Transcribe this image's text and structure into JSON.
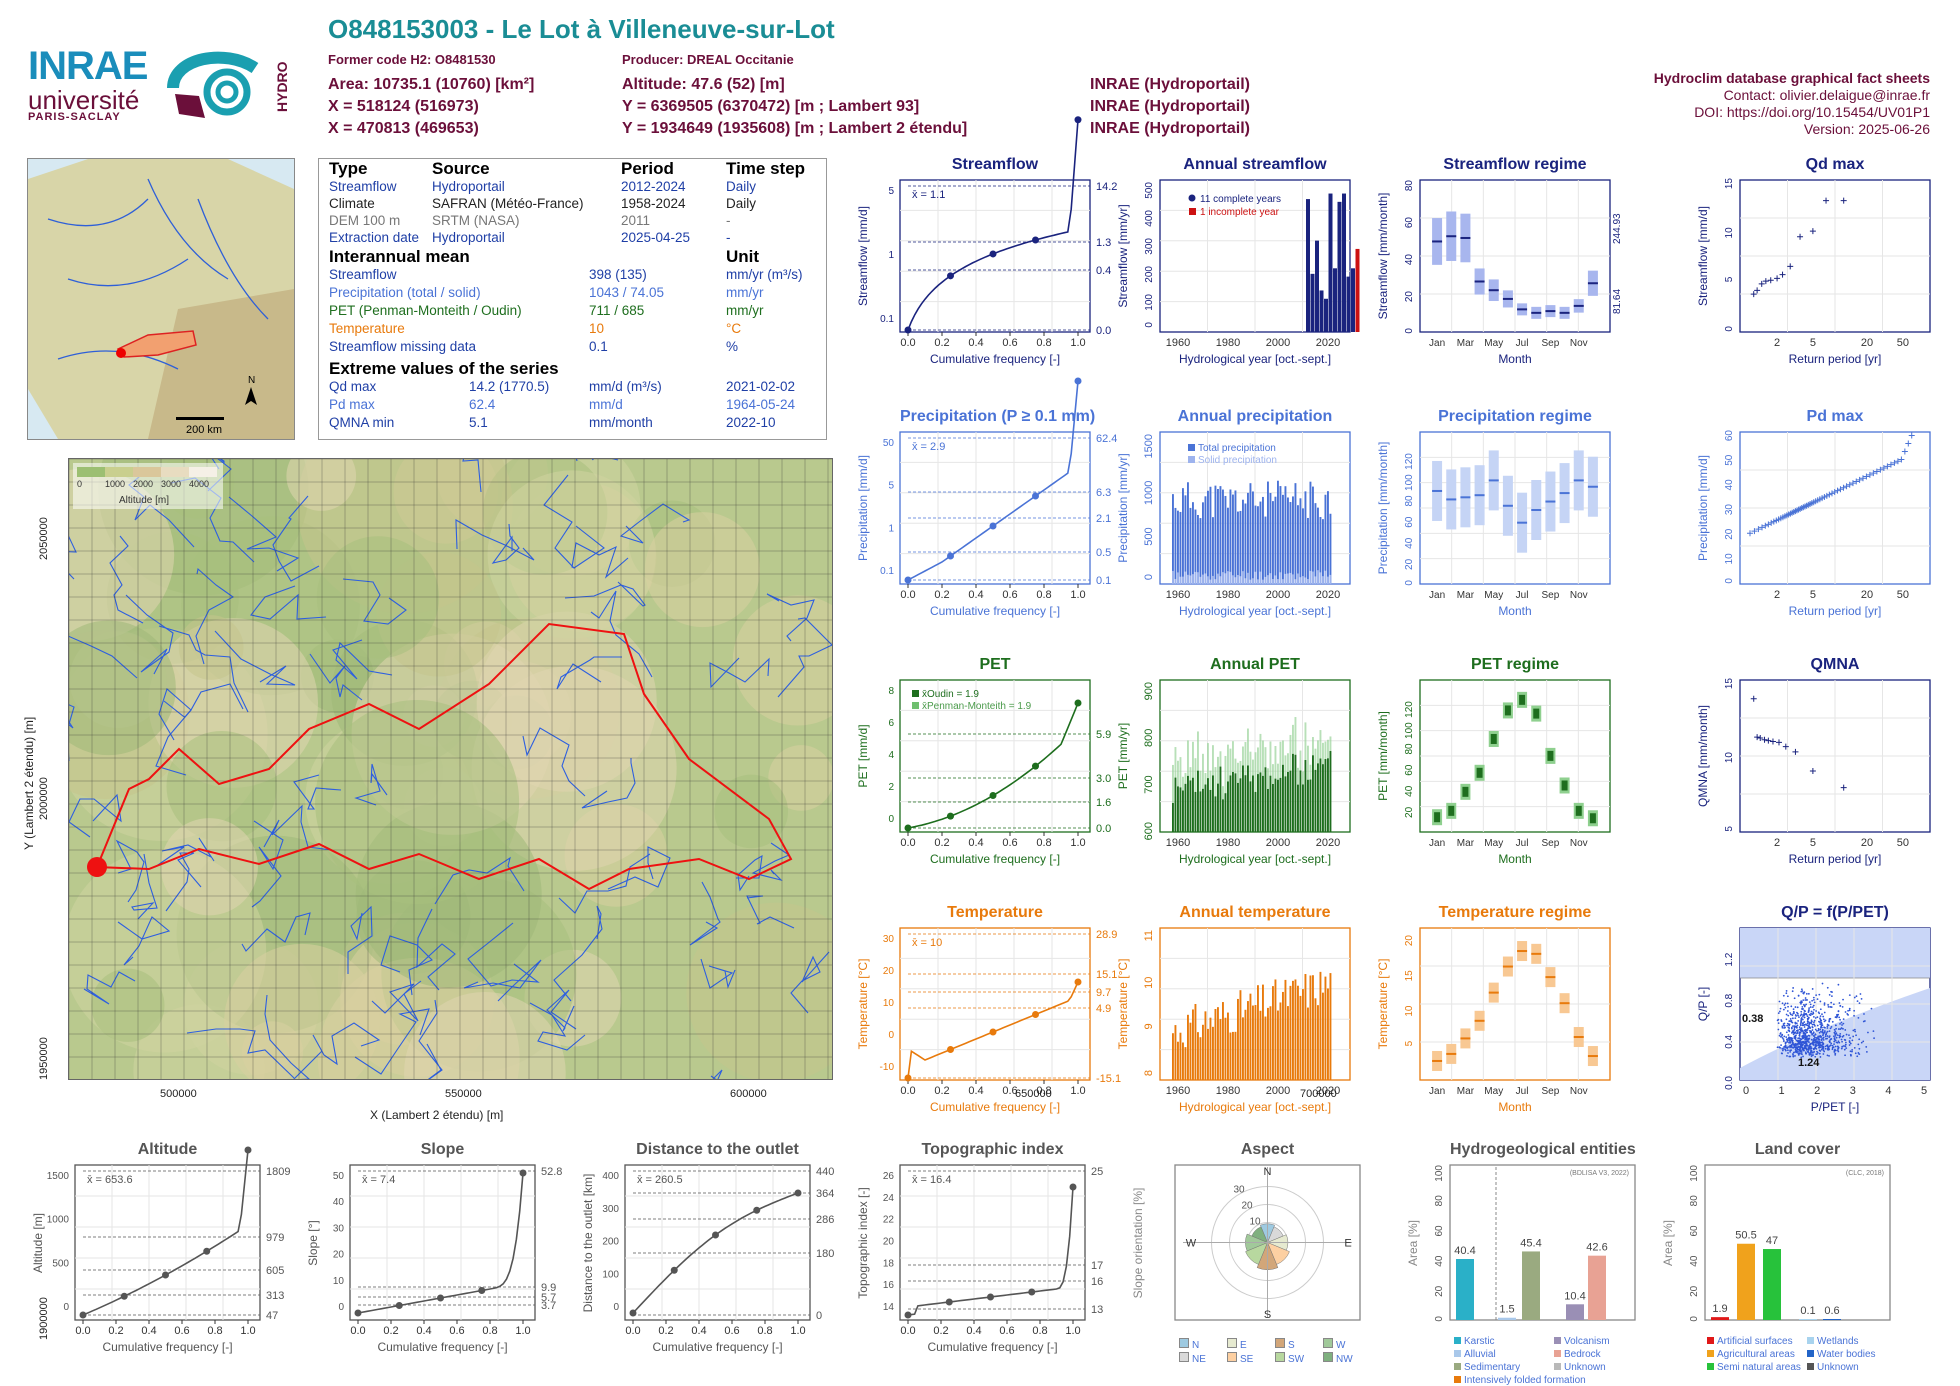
{
  "header": {
    "title": "O848153003 - Le Lot à Villeneuve-sur-Lot",
    "former_code": "Former code H2: O8481530",
    "producer": "Producer: DREAL Occitanie",
    "area": "Area: 10735.1 (10760) [km²]",
    "altitude": "Altitude: 47.6 (52) [m]",
    "x_l93": "X = 518124 (516973)",
    "y_l93": "Y = 6369505 (6370472) [m ; Lambert 93]",
    "x_l2": "X = 470813 (469653)",
    "y_l2": "Y = 1934649 (1935608) [m ; Lambert 2 étendu]",
    "src1": "INRAE (Hydroportail)",
    "src2": "INRAE (Hydroportail)",
    "src3": "INRAE (Hydroportail)"
  },
  "credits": {
    "line1": "Hydroclim database graphical fact sheets",
    "line2": "Contact: olivier.delaigue@inrae.fr",
    "line3": "DOI: https://doi.org/10.15454/UV01P1",
    "line4": "Version: 2025-06-26"
  },
  "logos": {
    "inrae": "INRAE",
    "univ": "université",
    "ps": "PARIS-SACLAY",
    "hydro": "HYDRO"
  },
  "france_map": {
    "scale": "200 km",
    "north": "N"
  },
  "info": {
    "h_type": "Type",
    "h_source": "Source",
    "h_period": "Period",
    "h_step": "Time step",
    "rows": [
      {
        "a": "Streamflow",
        "b": "Hydroportail",
        "c": "2012-2024",
        "d": "Daily",
        "color": "#1f3fa6"
      },
      {
        "a": "Climate",
        "b": "SAFRAN (Météo-France)",
        "c": "1958-2024",
        "d": "Daily",
        "color": "#222222"
      },
      {
        "a": "DEM 100 m",
        "b": "SRTM (NASA)",
        "c": "2011",
        "d": "-",
        "color": "#777777"
      },
      {
        "a": "Extraction date",
        "b": "Hydroportail",
        "c": "2025-04-25",
        "d": "-",
        "color": "#1f3fa6"
      }
    ],
    "h_mean": "Interannual mean",
    "h_unit": "Unit",
    "means": [
      {
        "a": "Streamflow",
        "v": "398 (135)",
        "u": "mm/yr (m³/s)",
        "color": "#1f3fa6"
      },
      {
        "a": "Precipitation (total / solid)",
        "v": "1043 / 74.05",
        "u": "mm/yr",
        "color": "#4a73d6"
      },
      {
        "a": "PET (Penman-Monteith / Oudin)",
        "v": "711 / 685",
        "u": "mm/yr",
        "color": "#1e6e1e"
      },
      {
        "a": "Temperature",
        "v": "10",
        "u": "°C",
        "color": "#e87a0c"
      },
      {
        "a": "Streamflow missing data",
        "v": "0.1",
        "u": "%",
        "color": "#1f3fa6"
      }
    ],
    "h_extreme": "Extreme values of the series",
    "extremes": [
      {
        "a": "Qd max",
        "v": "14.2 (1770.5)",
        "u": "mm/d (m³/s)",
        "d": "2021-02-02",
        "color": "#1f3fa6"
      },
      {
        "a": "Pd max",
        "v": "62.4",
        "u": "mm/d",
        "d": "1964-05-24",
        "color": "#4a73d6"
      },
      {
        "a": "QMNA min",
        "v": "5.1",
        "u": "mm/month",
        "d": "2022-10",
        "color": "#1f3fa6"
      }
    ]
  },
  "bigmap": {
    "xlabel": "X (Lambert 2 étendu) [m]",
    "ylabel": "Y (Lambert 2 étendu) [m]",
    "xticks": [
      "500000",
      "550000",
      "600000",
      "650000",
      "700000"
    ],
    "yticks": [
      "2050000",
      "2000000",
      "1950000",
      "1900000"
    ],
    "legend_title": "Altitude [m]",
    "legend_ticks": [
      "0",
      "1000",
      "2000",
      "3000",
      "4000"
    ]
  },
  "colors": {
    "q": "#1a237e",
    "p": "#4a73d6",
    "pet": "#1e6e1e",
    "t": "#e87a0c",
    "gray": "#555555"
  },
  "chart_data": [
    {
      "id": "streamflow",
      "type": "line",
      "title": "Streamflow",
      "xlabel": "Cumulative frequency [-]",
      "ylabel": "Streamflow [mm/d]",
      "mean_label": "x̄ = 1.1",
      "right_ticks": [
        "14.2",
        "1.3",
        "0.4",
        "0.0"
      ],
      "left_ticks": [
        "5",
        "1",
        "0.1"
      ]
    },
    {
      "id": "annual_streamflow",
      "type": "bar",
      "title": "Annual streamflow",
      "xlabel": "Hydrological year [oct.-sept.]",
      "ylabel": "Streamflow [mm/yr]",
      "legend": [
        "11 complete years",
        "1 incomplete year"
      ],
      "x": [
        2013,
        2014,
        2015,
        2016,
        2017,
        2018,
        2019,
        2020,
        2021,
        2022,
        2023,
        2024
      ],
      "values": [
        480,
        210,
        330,
        150,
        120,
        500,
        230,
        470,
        500,
        200,
        230,
        300
      ],
      "ylim": [
        0,
        520
      ],
      "xticks": [
        "1960",
        "1980",
        "2000",
        "2020"
      ],
      "yticks": [
        "0",
        "100",
        "200",
        "300",
        "400",
        "500"
      ]
    },
    {
      "id": "streamflow_regime",
      "type": "bar",
      "title": "Streamflow regime",
      "xlabel": "Month",
      "ylabel": "Streamflow [mm/month]",
      "categories": [
        "Jan",
        "Feb",
        "Mar",
        "Apr",
        "May",
        "Jun",
        "Jul",
        "Aug",
        "Sep",
        "Oct",
        "Nov",
        "Dec"
      ],
      "values": [
        52,
        55,
        54,
        29,
        24,
        19,
        13,
        11,
        12,
        11,
        15,
        28
      ],
      "ylim": [
        0,
        85
      ],
      "right_ticks": [
        "244.93",
        "81.64",
        "0"
      ],
      "yticks": [
        "0",
        "20",
        "40",
        "60",
        "80"
      ]
    },
    {
      "id": "qd_max",
      "type": "scatter",
      "title": "Qd max",
      "xlabel": "Return period [yr]",
      "ylabel": "Streamflow [mm/d]",
      "x": [
        1.1,
        1.2,
        1.35,
        1.5,
        1.7,
        2,
        2.3,
        2.8,
        3.6,
        5,
        7,
        11
      ],
      "values": [
        4.1,
        4.5,
        5.2,
        5.5,
        5.6,
        5.8,
        6.2,
        7.1,
        10.3,
        10.9,
        14.2,
        14.2
      ],
      "ylim": [
        0,
        16
      ],
      "xticks": [
        "2",
        "5",
        "20",
        "50"
      ],
      "yticks": [
        "0",
        "5",
        "10",
        "15"
      ]
    },
    {
      "id": "precipitation",
      "type": "line",
      "title": "Precipitation (P ≥ 0.1 mm)",
      "xlabel": "Cumulative frequency [-]",
      "ylabel": "Precipitation [mm/d]",
      "mean_label": "x̄ = 2.9",
      "right_ticks": [
        "62.4",
        "6.3",
        "2.1",
        "0.5",
        "0.1"
      ],
      "left_ticks": [
        "50",
        "5",
        "1",
        "0.1"
      ]
    },
    {
      "id": "annual_precipitation",
      "type": "bar",
      "title": "Annual precipitation",
      "xlabel": "Hydrological year [oct.-sept.]",
      "ylabel": "Precipitation [mm/yr]",
      "legend": [
        "Total precipitation",
        "Solid precipitation"
      ],
      "ylim": [
        0,
        1500
      ],
      "xticks": [
        "1960",
        "1980",
        "2000",
        "2020"
      ],
      "yticks": [
        "0",
        "500",
        "1000",
        "1500"
      ]
    },
    {
      "id": "precipitation_regime",
      "type": "bar",
      "title": "Precipitation regime",
      "xlabel": "Month",
      "ylabel": "Precipitation [mm/month]",
      "categories": [
        "Jan",
        "Feb",
        "Mar",
        "Apr",
        "May",
        "Jun",
        "Jul",
        "Aug",
        "Sep",
        "Oct",
        "Nov",
        "Dec"
      ],
      "values": [
        88,
        80,
        82,
        84,
        98,
        74,
        58,
        70,
        78,
        86,
        98,
        92
      ],
      "ylim": [
        0,
        140
      ],
      "yticks": [
        "0",
        "20",
        "40",
        "60",
        "80",
        "100",
        "120"
      ]
    },
    {
      "id": "pd_max",
      "type": "scatter",
      "title": "Pd max",
      "xlabel": "Return period [yr]",
      "ylabel": "Precipitation [mm/d]",
      "ylim": [
        0,
        70
      ],
      "xticks": [
        "2",
        "5",
        "20",
        "50"
      ],
      "yticks": [
        "0",
        "10",
        "20",
        "30",
        "40",
        "50",
        "60"
      ]
    },
    {
      "id": "pet",
      "type": "line",
      "title": "PET",
      "xlabel": "Cumulative frequency [-]",
      "ylabel": "PET [mm/d]",
      "legend": [
        "x̄Oudin = 1.9",
        "x̄Penman-Monteith = 1.9"
      ],
      "right_ticks": [
        "5.9",
        "3.0",
        "1.6",
        "0.0"
      ],
      "left_ticks": [
        "8",
        "6",
        "4",
        "2",
        "0"
      ]
    },
    {
      "id": "annual_pet",
      "type": "bar",
      "title": "Annual PET",
      "xlabel": "Hydrological year [oct.-sept.]",
      "ylabel": "PET [mm/yr]",
      "ylim": [
        550,
        950
      ],
      "xticks": [
        "1960",
        "1980",
        "2000",
        "2020"
      ],
      "yticks": [
        "600",
        "700",
        "800",
        "900"
      ]
    },
    {
      "id": "pet_regime",
      "type": "bar",
      "title": "PET regime",
      "xlabel": "Month",
      "ylabel": "PET [mm/month]",
      "categories": [
        "Jan",
        "Feb",
        "Mar",
        "Apr",
        "May",
        "Jun",
        "Jul",
        "Aug",
        "Sep",
        "Oct",
        "Nov",
        "Dec"
      ],
      "values": [
        14,
        20,
        38,
        56,
        88,
        115,
        125,
        112,
        72,
        44,
        20,
        13
      ],
      "ylim": [
        0,
        140
      ],
      "yticks": [
        "20",
        "40",
        "60",
        "80",
        "100",
        "120"
      ]
    },
    {
      "id": "qmna",
      "type": "scatter",
      "title": "QMNA",
      "xlabel": "Return period [yr]",
      "ylabel": "QMNA [mm/month]",
      "x": [
        1.1,
        1.2,
        1.3,
        1.45,
        1.6,
        1.8,
        2.1,
        2.5,
        3.2,
        5,
        11
      ],
      "values": [
        15.3,
        10.9,
        10.8,
        10.6,
        10.5,
        10.4,
        10.3,
        9.8,
        9.2,
        7.0,
        5.1
      ],
      "ylim": [
        0,
        17
      ],
      "xticks": [
        "2",
        "5",
        "20",
        "50"
      ],
      "yticks": [
        "5",
        "10",
        "15"
      ]
    },
    {
      "id": "temperature",
      "type": "line",
      "title": "Temperature",
      "xlabel": "Cumulative frequency [-]",
      "ylabel": "Temperature [°C]",
      "mean_label": "x̄ = 10",
      "right_ticks": [
        "28.9",
        "15.1",
        "9.7",
        "4.9",
        "-15.1"
      ],
      "left_ticks": [
        "30",
        "20",
        "10",
        "0",
        "-10"
      ]
    },
    {
      "id": "annual_temperature",
      "type": "bar",
      "title": "Annual temperature",
      "xlabel": "Hydrological year [oct.-sept.]",
      "ylabel": "Temperature [°C]",
      "ylim": [
        8,
        12
      ],
      "xticks": [
        "1960",
        "1980",
        "2000",
        "2020"
      ],
      "yticks": [
        "8",
        "9",
        "10",
        "11"
      ]
    },
    {
      "id": "temperature_regime",
      "type": "bar",
      "title": "Temperature regime",
      "xlabel": "Month",
      "ylabel": "Temperature [°C]",
      "categories": [
        "Jan",
        "Feb",
        "Mar",
        "Apr",
        "May",
        "Jun",
        "Jul",
        "Aug",
        "Sep",
        "Oct",
        "Nov",
        "Dec"
      ],
      "values": [
        2.7,
        3.7,
        5.9,
        8.4,
        12.4,
        16.1,
        18.3,
        17.9,
        14.6,
        10.9,
        6.1,
        3.4
      ],
      "ylim": [
        0,
        21
      ],
      "yticks": [
        "5",
        "10",
        "15",
        "20"
      ]
    },
    {
      "id": "qp_ppet",
      "type": "scatter",
      "title": "Q/P = f(P/PET)",
      "xlabel": "P/PET [-]",
      "ylabel": "Q/P [-]",
      "annotations": [
        "0.38",
        "1.24"
      ],
      "xticks": [
        "0",
        "1",
        "2",
        "3",
        "4",
        "5"
      ],
      "yticks": [
        "0.0",
        "0.4",
        "0.8",
        "1.2"
      ]
    },
    {
      "id": "altitude",
      "type": "line",
      "title": "Altitude",
      "xlabel": "Cumulative frequency [-]",
      "ylabel": "Altitude [m]",
      "mean_label": "x̄ = 653.6",
      "right_ticks": [
        "1809",
        "979",
        "605",
        "313",
        "47"
      ],
      "left_ticks": [
        "1500",
        "1000",
        "500",
        "0"
      ]
    },
    {
      "id": "slope",
      "type": "line",
      "title": "Slope",
      "xlabel": "Cumulative frequency [-]",
      "ylabel": "Slope [°]",
      "mean_label": "x̄ = 7.4",
      "right_ticks": [
        "52.8",
        "9.9",
        "5.7",
        "3.7"
      ],
      "left_ticks": [
        "50",
        "40",
        "30",
        "20",
        "10",
        "0"
      ]
    },
    {
      "id": "distance",
      "type": "line",
      "title": "Distance to the outlet",
      "xlabel": "Cumulative frequency [-]",
      "ylabel": "Distance to the outlet [km]",
      "mean_label": "x̄ = 260.5",
      "right_ticks": [
        "440",
        "364",
        "286",
        "180",
        "0"
      ],
      "left_ticks": [
        "400",
        "300",
        "200",
        "100",
        "0"
      ]
    },
    {
      "id": "topo_index",
      "type": "line",
      "title": "Topographic index",
      "xlabel": "Cumulative frequency [-]",
      "ylabel": "Topographic index [-]",
      "mean_label": "x̄ = 16.4",
      "right_ticks": [
        "25",
        "17",
        "16",
        "13"
      ],
      "left_ticks": [
        "26",
        "24",
        "22",
        "20",
        "18",
        "16",
        "14"
      ]
    },
    {
      "id": "aspect",
      "type": "pie",
      "title": "Aspect",
      "ylabel": "Slope orientation [%]",
      "categories": [
        "N",
        "NE",
        "E",
        "SE",
        "S",
        "SW",
        "W",
        "NW"
      ],
      "values": [
        11,
        10,
        12,
        14,
        16,
        14,
        13,
        10
      ],
      "colors": [
        "#9ecae1",
        "#d9d9d9",
        "#e6ead0",
        "#fdd0a2",
        "#d2a679",
        "#b8d89f",
        "#a1c99a",
        "#7fb07f"
      ],
      "ring_ticks": [
        "10",
        "20",
        "30"
      ],
      "compass": [
        "N",
        "E",
        "S",
        "W"
      ]
    },
    {
      "id": "hydrogeology",
      "type": "bar",
      "title": "Hydrogeological entities",
      "ylabel": "Area [%]",
      "categories": [
        "Karstic",
        "Alluvial",
        "Sedimentary",
        "Intensively folded formation",
        "Volcanism",
        "Bedrock",
        "Unknown"
      ],
      "values": [
        40.4,
        1.5,
        45.4,
        0,
        10.4,
        42.6,
        0
      ],
      "colors": [
        "#2ab0c8",
        "#a9c8ea",
        "#9aaa80",
        "#e87a0c",
        "#9a8fb5",
        "#e8a294",
        "#b9b9b9"
      ],
      "source_note": "(BDLISA V3, 2022)",
      "ylim": [
        0,
        100
      ],
      "yticks": [
        "0",
        "20",
        "40",
        "60",
        "80",
        "100"
      ]
    },
    {
      "id": "land_cover",
      "type": "bar",
      "title": "Land cover",
      "ylabel": "Area [%]",
      "categories": [
        "Artificial surfaces",
        "Agricultural areas",
        "Semi natural areas",
        "Wetlands",
        "Water bodies",
        "Unknown"
      ],
      "values": [
        1.9,
        50.5,
        47,
        0.1,
        0.6,
        0
      ],
      "colors": [
        "#e01818",
        "#f0a21c",
        "#27c23b",
        "#a8d3ee",
        "#2264c8",
        "#555555"
      ],
      "source_note": "(CLC, 2018)",
      "ylim": [
        0,
        100
      ],
      "yticks": [
        "0",
        "20",
        "40",
        "60",
        "80",
        "100"
      ]
    }
  ]
}
